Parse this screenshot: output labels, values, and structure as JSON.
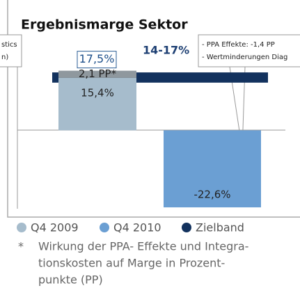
{
  "chart_data": {
    "type": "bar",
    "title": "Ergebnismarge Sektor",
    "categories": [
      null,
      null
    ],
    "series": [
      {
        "name": "Q4 2009",
        "color": "#a6bccc",
        "values": [
          15.4,
          null
        ],
        "value_labels": [
          "15,4%",
          null
        ],
        "stack_values": [
          2.1,
          null
        ],
        "stack_labels": [
          "2,1 PP*",
          null
        ],
        "stack_color": "#8f989e",
        "totals": [
          17.5,
          null
        ],
        "total_labels": [
          "17,5%",
          null
        ]
      },
      {
        "name": "Q4 2010",
        "color": "#6b9fd3",
        "values": [
          null,
          -22.6
        ],
        "value_labels": [
          null,
          "-22,6%"
        ]
      }
    ],
    "band": {
      "name": "Zielband",
      "color": "#13325e",
      "range": [
        14,
        17
      ],
      "label": "14-17%"
    },
    "ylim": [
      -23,
      26
    ],
    "callouts": [
      {
        "lines": [
          "stics",
          "n)"
        ]
      },
      {
        "lines": [
          "- PPA Effekte: -1,4 PP",
          "- Wertminderungen Diag"
        ]
      }
    ],
    "footnote_marker": "*",
    "footnote": [
      "Wirkung der PPA- Effekte und Integra-",
      "tionskosten auf Marge in Prozent-",
      "punkte (PP)"
    ]
  }
}
